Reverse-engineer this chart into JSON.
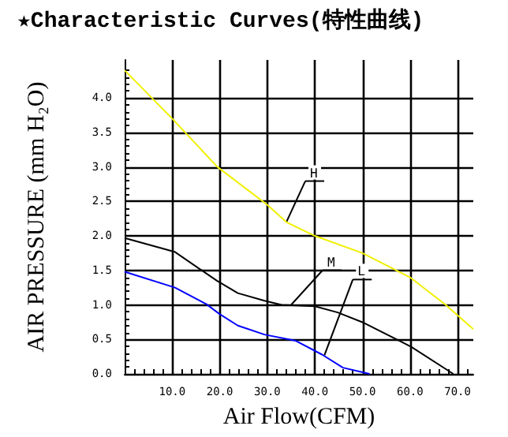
{
  "chart_data": {
    "type": "line",
    "title": "★Characteristic Curves(特性曲线)",
    "xlabel": "Air Flow(CFM)",
    "ylabel": "AIR PRESSURE (mm H₂O)",
    "xlim": [
      0,
      73.3
    ],
    "xticks": [
      {
        "value": 10,
        "label": "10.0"
      },
      {
        "value": 20,
        "label": "20.0"
      },
      {
        "value": 30,
        "label": "30.0"
      },
      {
        "value": 40,
        "label": "40.0"
      },
      {
        "value": 50,
        "label": "50.0"
      },
      {
        "value": 60,
        "label": "60.0"
      },
      {
        "value": 70,
        "label": "70.0"
      }
    ],
    "ylim": [
      0,
      4.55
    ],
    "yticks": [
      {
        "value": 0,
        "label": "0.0"
      },
      {
        "value": 0.5,
        "label": "0.5"
      },
      {
        "value": 1,
        "label": "1.0"
      },
      {
        "value": 1.5,
        "label": "1.5"
      },
      {
        "value": 2,
        "label": "2.0"
      },
      {
        "value": 2.5,
        "label": "2.5"
      },
      {
        "value": 3,
        "label": "3.0"
      },
      {
        "value": 3.5,
        "label": "3.5"
      },
      {
        "value": 4,
        "label": "4.0"
      }
    ],
    "grid": true,
    "marker": "none",
    "line_style": "solid",
    "series": [
      {
        "color": "#f0f000",
        "x": [
          0,
          10,
          19.5,
          30,
          34,
          40,
          50,
          60,
          67.5,
          73.3
        ],
        "values": [
          4.4,
          3.7,
          3.0,
          2.45,
          2.2,
          2.0,
          1.75,
          1.4,
          1.0,
          0.65
        ]
      },
      {
        "color": "#000000",
        "x": [
          0,
          10.5,
          19.4,
          23.8,
          29.4,
          33,
          40,
          44.8,
          50.3,
          60.3,
          69.1
        ],
        "values": [
          1.97,
          1.77,
          1.35,
          1.17,
          1.06,
          1.0,
          0.98,
          0.89,
          0.74,
          0.39,
          0
        ]
      },
      {
        "color": "#0000ff",
        "x": [
          0,
          10.6,
          17.2,
          19.9,
          23.8,
          29.4,
          36,
          41.5,
          45.9,
          51.5
        ],
        "values": [
          1.48,
          1.25,
          1.01,
          0.87,
          0.7,
          0.57,
          0.48,
          0.28,
          0.09,
          0
        ]
      }
    ],
    "annotations": [
      {
        "text": "H",
        "x": 34,
        "y": 2.2
      },
      {
        "text": "M",
        "x": 35,
        "y": 1.0
      },
      {
        "text": "L",
        "x": 42,
        "y": 0.27
      }
    ]
  }
}
